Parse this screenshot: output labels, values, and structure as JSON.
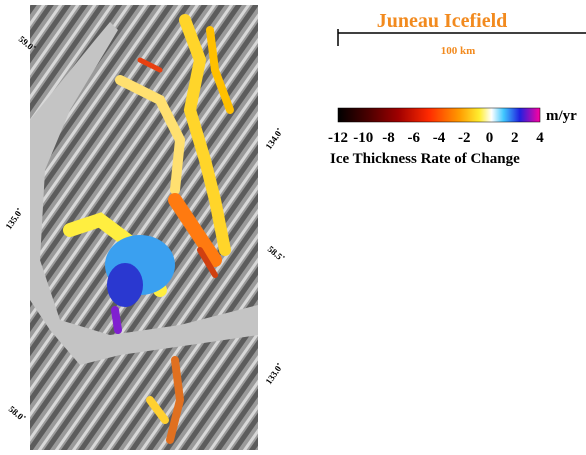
{
  "title": "Juneau Icefield",
  "scale_bar": {
    "label": "100 km"
  },
  "colorbar": {
    "ticks": [
      -12,
      -10,
      -8,
      -6,
      -4,
      -2,
      0,
      2,
      4
    ],
    "unit": "m/yr",
    "label": "Ice Thickness Rate of Change"
  },
  "map_labels": [
    "59.0˚",
    "134.0˚",
    "135.0˚",
    "58.5˚",
    "133.0˚",
    "58.0˚"
  ]
}
